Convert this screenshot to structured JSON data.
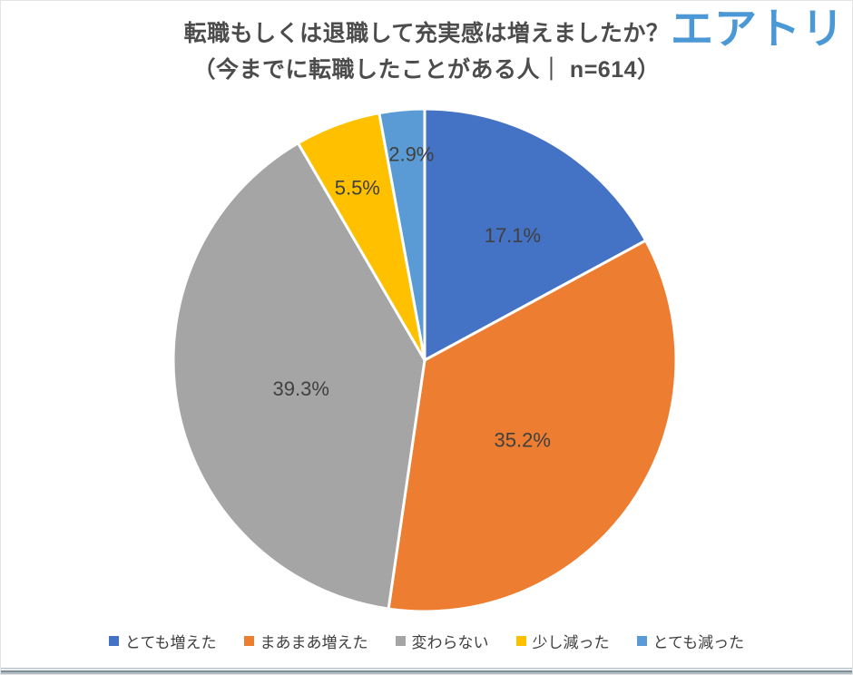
{
  "header": {
    "title_line1": "転職もしくは退職して充実感は増えましたか？",
    "title_line2": "（今までに転職したことがある人｜ n=614）",
    "logo_text": "エアトリ",
    "logo_color": "#4a98d5",
    "title_color": "#4c4c4c"
  },
  "chart_data": {
    "type": "pie",
    "title": "転職もしくは退職して充実感は増えましたか？（今までに転職したことがある人｜ n=614）",
    "sample_size": "n=614",
    "categories": [
      "とても増えた",
      "まあまあ増えた",
      "変わらない",
      "少し減った",
      "とても減った"
    ],
    "values": [
      17.1,
      35.2,
      39.3,
      5.5,
      2.9
    ],
    "data_labels": [
      "17.1%",
      "35.2%",
      "39.3%",
      "5.5%",
      "2.9%"
    ],
    "colors": [
      "#4472c4",
      "#ed7d31",
      "#a5a5a5",
      "#ffc000",
      "#5b9bd5"
    ],
    "slice_ids": [
      "very-increased",
      "somewhat-increased",
      "unchanged",
      "slightly-decreased",
      "very-decreased"
    ],
    "start_angle_deg": 0,
    "direction": "clockwise",
    "legend_position": "bottom",
    "label_color": "#404040",
    "slice_border_color": "#ffffff"
  }
}
